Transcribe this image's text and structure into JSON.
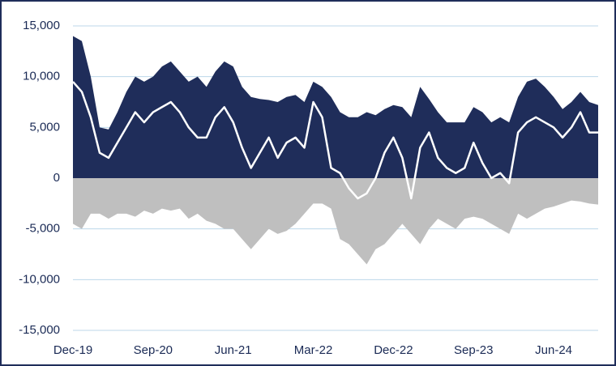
{
  "chart_data": {
    "type": "area",
    "categories": [
      "Dec-19",
      null,
      null,
      null,
      null,
      null,
      null,
      null,
      null,
      "Sep-20",
      null,
      null,
      null,
      null,
      null,
      null,
      null,
      null,
      "Jun-21",
      null,
      null,
      null,
      null,
      null,
      null,
      null,
      null,
      "Mar-22",
      null,
      null,
      null,
      null,
      null,
      null,
      null,
      null,
      "Dec-22",
      null,
      null,
      null,
      null,
      null,
      null,
      null,
      null,
      "Sep-23",
      null,
      null,
      null,
      null,
      null,
      null,
      null,
      null,
      "Jun-24",
      null,
      null,
      null,
      null,
      null
    ],
    "series": [
      {
        "kind": "area",
        "color": "#1f2d5a",
        "values": [
          14000,
          13500,
          10000,
          5000,
          4800,
          6500,
          8500,
          10000,
          9500,
          10000,
          11000,
          11500,
          10500,
          9500,
          10000,
          9000,
          10500,
          11500,
          11000,
          9000,
          8000,
          7800,
          7700,
          7500,
          8000,
          8200,
          7500,
          9500,
          9000,
          8000,
          6500,
          6000,
          6000,
          6500,
          6200,
          6800,
          7200,
          7000,
          6000,
          9000,
          7800,
          6500,
          5500,
          5500,
          5500,
          7000,
          6500,
          5500,
          6000,
          5500,
          8000,
          9500,
          9800,
          9000,
          8000,
          6800,
          7500,
          8500,
          7500,
          7200
        ]
      },
      {
        "kind": "area",
        "color": "#bfbfbf",
        "values": [
          -4500,
          -5000,
          -3500,
          -3500,
          -4000,
          -3500,
          -3500,
          -3800,
          -3200,
          -3500,
          -3000,
          -3200,
          -3000,
          -4000,
          -3500,
          -4200,
          -4500,
          -5000,
          -5000,
          -6000,
          -7000,
          -6000,
          -5000,
          -5500,
          -5200,
          -4500,
          -3500,
          -2500,
          -2500,
          -3000,
          -6000,
          -6500,
          -7500,
          -8500,
          -7000,
          -6500,
          -5500,
          -4500,
          -5500,
          -6500,
          -5000,
          -4000,
          -4500,
          -5000,
          -4000,
          -3800,
          -4000,
          -4500,
          -5000,
          -5500,
          -3500,
          -4000,
          -3500,
          -3000,
          -2800,
          -2500,
          -2200,
          -2300,
          -2500,
          -2600
        ]
      },
      {
        "kind": "line",
        "color": "#ffffff",
        "values": [
          9500,
          8500,
          6000,
          2500,
          2000,
          3500,
          5000,
          6500,
          5500,
          6500,
          7000,
          7500,
          6500,
          5000,
          4000,
          4000,
          6000,
          7000,
          5500,
          3000,
          1000,
          2500,
          4000,
          2000,
          3500,
          4000,
          3000,
          7500,
          6000,
          1000,
          500,
          -1000,
          -2000,
          -1500,
          0,
          2500,
          4000,
          2000,
          -2000,
          3000,
          4500,
          2000,
          1000,
          500,
          1000,
          3500,
          1500,
          0,
          500,
          -500,
          4500,
          5500,
          6000,
          5500,
          5000,
          4000,
          5000,
          6500,
          4500,
          4500
        ]
      }
    ],
    "ylim": [
      -15000,
      15000
    ],
    "yticks": [
      {
        "value": -15000,
        "label": "-15,000"
      },
      {
        "value": -10000,
        "label": "-10,000"
      },
      {
        "value": -5000,
        "label": "-5,000"
      },
      0,
      {
        "value": 5000,
        "label": "5,000"
      },
      {
        "value": 10000,
        "label": "10,000"
      },
      {
        "value": 15000,
        "label": "15,000"
      }
    ],
    "grid": true
  }
}
